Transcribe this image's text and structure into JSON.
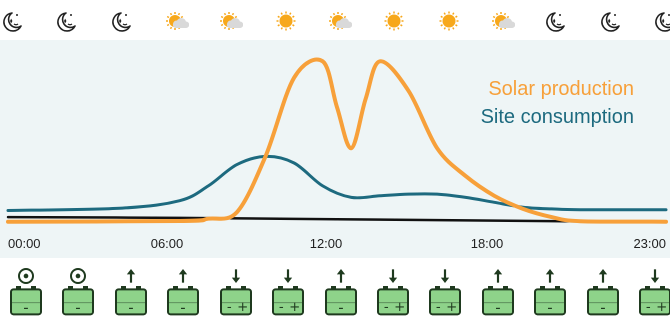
{
  "weather": {
    "icons": [
      "moon-icon",
      "moon-icon",
      "moon-icon",
      "partly-cloudy-icon",
      "partly-cloudy-icon",
      "sun-icon",
      "partly-cloudy-icon",
      "sun-icon",
      "sun-icon",
      "partly-cloudy-icon",
      "moon-icon",
      "moon-icon",
      "moon-icon"
    ]
  },
  "chart_data": {
    "type": "line",
    "series": [
      {
        "name": "Solar production",
        "color": "#f7a03a",
        "x": [
          "00:00",
          "06:00",
          "07:00",
          "08:00",
          "09:00",
          "10:00",
          "11:00",
          "11:30",
          "12:00",
          "12:30",
          "13:00",
          "14:00",
          "15:00",
          "16:00",
          "17:00",
          "18:00",
          "19:00",
          "20:00",
          "23:00"
        ],
        "values": [
          0.2,
          0.6,
          2.0,
          6,
          40,
          88,
          98,
          70,
          45,
          75,
          98,
          80,
          45,
          28,
          16,
          8,
          3,
          0.5,
          0.2
        ]
      },
      {
        "name": "Site consumption",
        "color": "#1d6a7f",
        "x": [
          "00:00",
          "04:00",
          "06:00",
          "07:00",
          "08:00",
          "09:00",
          "10:00",
          "11:00",
          "12:00",
          "13:00",
          "14:00",
          "15:00",
          "16:00",
          "17:00",
          "18:00",
          "19:00",
          "20:00",
          "23:00"
        ],
        "values": [
          7,
          8.5,
          13,
          22,
          35,
          40,
          36,
          22,
          15,
          16,
          17,
          17,
          15,
          12,
          9,
          8,
          7.5,
          7.5
        ]
      },
      {
        "name": "",
        "color": "#111111",
        "x": [
          "00:00",
          "06:00",
          "12:00",
          "18:00",
          "23:00"
        ],
        "values": [
          3,
          2.5,
          1.6,
          0.7,
          0
        ]
      }
    ],
    "legend": [
      "Solar production",
      "Site consumption"
    ],
    "legend_placement": "top-right",
    "x_ticks": [
      "00:00",
      "06:00",
      "12:00",
      "18:00",
      "23:00"
    ],
    "xlim": [
      "00:00",
      "23:00"
    ],
    "ylim": [
      0,
      100
    ],
    "grid": false,
    "background": "#eef5f6"
  },
  "battery": {
    "states": [
      "idle",
      "idle",
      "charge",
      "charge",
      "discharge",
      "discharge",
      "charge",
      "discharge",
      "discharge",
      "charge",
      "charge",
      "charge",
      "discharge"
    ],
    "icon": "battery-icon",
    "colors": {
      "fill": "#8ed38a",
      "outline": "#1f3a1f"
    }
  },
  "colors": {
    "sun": "#f7a81b",
    "moon": "#222222",
    "cloud": "#d9d9d9"
  }
}
